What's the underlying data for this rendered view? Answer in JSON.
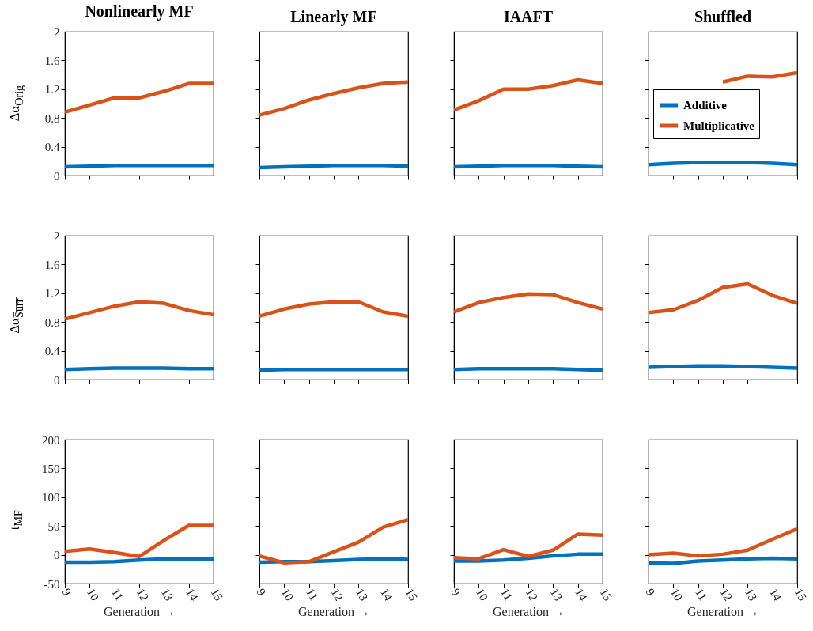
{
  "chart_data": [
    {
      "type": "line",
      "title": "Nonlinearly MF",
      "ylabel": "Δα$_{Orig}$",
      "x": [
        9,
        10,
        11,
        12,
        13,
        14,
        15
      ],
      "xlim": [
        9,
        15
      ],
      "xticks": [
        9,
        10,
        11,
        12,
        13,
        14,
        15
      ],
      "ylim": [
        0,
        2
      ],
      "yticks": [
        0,
        0.4,
        0.8,
        1.2,
        1.6,
        2
      ],
      "tick_labels": "y",
      "series": [
        {
          "color": "#0072bd",
          "values": [
            0.12,
            0.13,
            0.14,
            0.14,
            0.14,
            0.14,
            0.14
          ]
        },
        {
          "color": "#d95319",
          "values": [
            0.88,
            0.98,
            1.08,
            1.08,
            1.17,
            1.28,
            1.28
          ]
        }
      ]
    },
    {
      "type": "line",
      "title": "Linearly MF",
      "x": [
        9,
        10,
        11,
        12,
        13,
        14,
        15
      ],
      "xlim": [
        9,
        15
      ],
      "xticks": [
        9,
        10,
        11,
        12,
        13,
        14,
        15
      ],
      "ylim": [
        0,
        2
      ],
      "yticks": [
        0,
        0.4,
        0.8,
        1.2,
        1.6,
        2
      ],
      "tick_labels": false,
      "series": [
        {
          "color": "#0072bd",
          "values": [
            0.11,
            0.12,
            0.13,
            0.14,
            0.14,
            0.14,
            0.13
          ]
        },
        {
          "color": "#d95319",
          "values": [
            0.84,
            0.93,
            1.05,
            1.14,
            1.22,
            1.28,
            1.3
          ]
        }
      ]
    },
    {
      "type": "line",
      "title": "IAAFT",
      "x": [
        9,
        10,
        11,
        12,
        13,
        14,
        15
      ],
      "xlim": [
        9,
        15
      ],
      "xticks": [
        9,
        10,
        11,
        12,
        13,
        14,
        15
      ],
      "ylim": [
        0,
        2
      ],
      "yticks": [
        0,
        0.4,
        0.8,
        1.2,
        1.6,
        2
      ],
      "tick_labels": false,
      "series": [
        {
          "color": "#0072bd",
          "values": [
            0.12,
            0.13,
            0.14,
            0.14,
            0.14,
            0.13,
            0.12
          ]
        },
        {
          "color": "#d95319",
          "values": [
            0.91,
            1.04,
            1.2,
            1.2,
            1.25,
            1.33,
            1.28
          ]
        }
      ]
    },
    {
      "type": "line",
      "title": "Shuffled",
      "x": [
        9,
        10,
        11,
        12,
        13,
        14,
        15
      ],
      "xlim": [
        9,
        15
      ],
      "xticks": [
        9,
        10,
        11,
        12,
        13,
        14,
        15
      ],
      "ylim": [
        0,
        2
      ],
      "yticks": [
        0,
        0.4,
        0.8,
        1.2,
        1.6,
        2
      ],
      "tick_labels": false,
      "legend": "left",
      "series": [
        {
          "name": "Additive",
          "color": "#0072bd",
          "values": [
            0.15,
            0.17,
            0.18,
            0.18,
            0.18,
            0.17,
            0.15
          ]
        },
        {
          "name": "Multiplicative",
          "color": "#d95319",
          "values": [
            null,
            null,
            null,
            1.3,
            1.38,
            1.37,
            1.43
          ]
        }
      ]
    },
    {
      "type": "line",
      "ylabel": "Δ̅α̅$_{S̅u̅r̅r̅}$",
      "x": [
        9,
        10,
        11,
        12,
        13,
        14,
        15
      ],
      "xlim": [
        9,
        15
      ],
      "xticks": [
        9,
        10,
        11,
        12,
        13,
        14,
        15
      ],
      "ylim": [
        0,
        2
      ],
      "yticks": [
        0,
        0.4,
        0.8,
        1.2,
        1.6,
        2
      ],
      "tick_labels": "y",
      "series": [
        {
          "color": "#0072bd",
          "values": [
            0.14,
            0.15,
            0.16,
            0.16,
            0.16,
            0.15,
            0.15
          ]
        },
        {
          "color": "#d95319",
          "values": [
            0.84,
            0.93,
            1.02,
            1.08,
            1.06,
            0.96,
            0.9
          ]
        }
      ]
    },
    {
      "type": "line",
      "x": [
        9,
        10,
        11,
        12,
        13,
        14,
        15
      ],
      "xlim": [
        9,
        15
      ],
      "xticks": [
        9,
        10,
        11,
        12,
        13,
        14,
        15
      ],
      "ylim": [
        0,
        2
      ],
      "yticks": [
        0,
        0.4,
        0.8,
        1.2,
        1.6,
        2
      ],
      "tick_labels": false,
      "series": [
        {
          "color": "#0072bd",
          "values": [
            0.13,
            0.14,
            0.14,
            0.14,
            0.14,
            0.14,
            0.14
          ]
        },
        {
          "color": "#d95319",
          "values": [
            0.88,
            0.98,
            1.05,
            1.08,
            1.08,
            0.94,
            0.88
          ]
        }
      ]
    },
    {
      "type": "line",
      "x": [
        9,
        10,
        11,
        12,
        13,
        14,
        15
      ],
      "xlim": [
        9,
        15
      ],
      "xticks": [
        9,
        10,
        11,
        12,
        13,
        14,
        15
      ],
      "ylim": [
        0,
        2
      ],
      "yticks": [
        0,
        0.4,
        0.8,
        1.2,
        1.6,
        2
      ],
      "tick_labels": false,
      "series": [
        {
          "color": "#0072bd",
          "values": [
            0.14,
            0.15,
            0.15,
            0.15,
            0.15,
            0.14,
            0.13
          ]
        },
        {
          "color": "#d95319",
          "values": [
            0.94,
            1.07,
            1.14,
            1.19,
            1.18,
            1.07,
            0.98
          ]
        }
      ]
    },
    {
      "type": "line",
      "x": [
        9,
        10,
        11,
        12,
        13,
        14,
        15
      ],
      "xlim": [
        9,
        15
      ],
      "xticks": [
        9,
        10,
        11,
        12,
        13,
        14,
        15
      ],
      "ylim": [
        0,
        2
      ],
      "yticks": [
        0,
        0.4,
        0.8,
        1.2,
        1.6,
        2
      ],
      "tick_labels": false,
      "series": [
        {
          "color": "#0072bd",
          "values": [
            0.17,
            0.18,
            0.19,
            0.19,
            0.18,
            0.17,
            0.16
          ]
        },
        {
          "color": "#d95319",
          "values": [
            0.93,
            0.97,
            1.1,
            1.28,
            1.33,
            1.17,
            1.06
          ]
        }
      ]
    },
    {
      "type": "line",
      "ylabel": "t$_{MF}$",
      "xlabel": "Generation →",
      "x": [
        9,
        10,
        11,
        12,
        13,
        14,
        15
      ],
      "xlim": [
        9,
        15
      ],
      "xticks": [
        9,
        10,
        11,
        12,
        13,
        14,
        15
      ],
      "ylim": [
        -50,
        200
      ],
      "yticks": [
        -50,
        0,
        50,
        100,
        150,
        200
      ],
      "series": [
        {
          "color": "#0072bd",
          "values": [
            -13,
            -13,
            -12,
            -9,
            -7,
            -7,
            -7
          ]
        },
        {
          "color": "#d95319",
          "values": [
            6,
            10,
            4,
            -3,
            25,
            51,
            51
          ]
        }
      ]
    },
    {
      "type": "line",
      "xlabel": "Generation →",
      "x": [
        9,
        10,
        11,
        12,
        13,
        14,
        15
      ],
      "xlim": [
        9,
        15
      ],
      "xticks": [
        9,
        10,
        11,
        12,
        13,
        14,
        15
      ],
      "ylim": [
        -50,
        200
      ],
      "yticks": [
        -50,
        0,
        50,
        100,
        150,
        200
      ],
      "tick_labels": "x",
      "series": [
        {
          "color": "#0072bd",
          "values": [
            -13,
            -12,
            -12,
            -10,
            -8,
            -7,
            -8
          ]
        },
        {
          "color": "#d95319",
          "values": [
            -2,
            -14,
            -12,
            5,
            22,
            48,
            61
          ]
        }
      ]
    },
    {
      "type": "line",
      "xlabel": "Generation →",
      "x": [
        9,
        10,
        11,
        12,
        13,
        14,
        15
      ],
      "xlim": [
        9,
        15
      ],
      "xticks": [
        9,
        10,
        11,
        12,
        13,
        14,
        15
      ],
      "ylim": [
        -50,
        200
      ],
      "yticks": [
        -50,
        0,
        50,
        100,
        150,
        200
      ],
      "tick_labels": "x",
      "series": [
        {
          "color": "#0072bd",
          "values": [
            -11,
            -11,
            -9,
            -6,
            -2,
            1,
            1
          ]
        },
        {
          "color": "#d95319",
          "values": [
            -5,
            -7,
            9,
            -3,
            8,
            36,
            34
          ]
        }
      ]
    },
    {
      "type": "line",
      "xlabel": "Generation →",
      "x": [
        9,
        10,
        11,
        12,
        13,
        14,
        15
      ],
      "xlim": [
        9,
        15
      ],
      "xticks": [
        9,
        10,
        11,
        12,
        13,
        14,
        15
      ],
      "ylim": [
        -50,
        200
      ],
      "yticks": [
        -50,
        0,
        50,
        100,
        150,
        200
      ],
      "tick_labels": "x",
      "series": [
        {
          "color": "#0072bd",
          "values": [
            -14,
            -15,
            -11,
            -9,
            -7,
            -6,
            -7
          ]
        },
        {
          "color": "#d95319",
          "values": [
            0,
            3,
            -2,
            1,
            8,
            27,
            45
          ]
        }
      ]
    }
  ]
}
